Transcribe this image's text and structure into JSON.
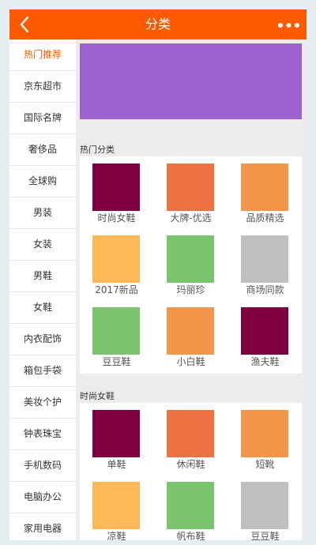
{
  "header": {
    "title": "分类",
    "back_icon": "chevron-left-icon",
    "more_icon": "more-dots-icon"
  },
  "colors": {
    "header_bg": "#ff5a00",
    "active_text": "#ff5a00",
    "banner": "#9c62cf"
  },
  "sidebar": {
    "items": [
      {
        "label": "热门推荐",
        "active": true
      },
      {
        "label": "京东超市"
      },
      {
        "label": "国际名牌"
      },
      {
        "label": "奢侈品"
      },
      {
        "label": "全球购"
      },
      {
        "label": "男装"
      },
      {
        "label": "女装"
      },
      {
        "label": "男鞋"
      },
      {
        "label": "女鞋"
      },
      {
        "label": "内衣配饰"
      },
      {
        "label": "箱包手袋"
      },
      {
        "label": "美妆个护"
      },
      {
        "label": "钟表珠宝"
      },
      {
        "label": "手机数码"
      },
      {
        "label": "电脑办公"
      },
      {
        "label": "家用电器"
      }
    ]
  },
  "sections": [
    {
      "title": "热门分类",
      "items": [
        {
          "label": "时尚女鞋",
          "color": "#800040"
        },
        {
          "label": "大牌-优选",
          "color": "#ee7143"
        },
        {
          "label": "品质精选",
          "color": "#f4964a"
        },
        {
          "label": "2017新品",
          "color": "#fbb958"
        },
        {
          "label": "玛丽珍",
          "color": "#7ac46e"
        },
        {
          "label": "商场同款",
          "color": "#bfbfbf"
        },
        {
          "label": "豆豆鞋",
          "color": "#7ac46e"
        },
        {
          "label": "小白鞋",
          "color": "#f4964a"
        },
        {
          "label": "渔夫鞋",
          "color": "#800040"
        }
      ]
    },
    {
      "title": "时尚女鞋",
      "items": [
        {
          "label": "单鞋",
          "color": "#800040"
        },
        {
          "label": "休闲鞋",
          "color": "#ee7143"
        },
        {
          "label": "短靴",
          "color": "#f4964a"
        },
        {
          "label": "凉鞋",
          "color": "#fbb958"
        },
        {
          "label": "帆布鞋",
          "color": "#7ac46e"
        },
        {
          "label": "豆豆鞋",
          "color": "#bfbfbf"
        }
      ]
    }
  ]
}
